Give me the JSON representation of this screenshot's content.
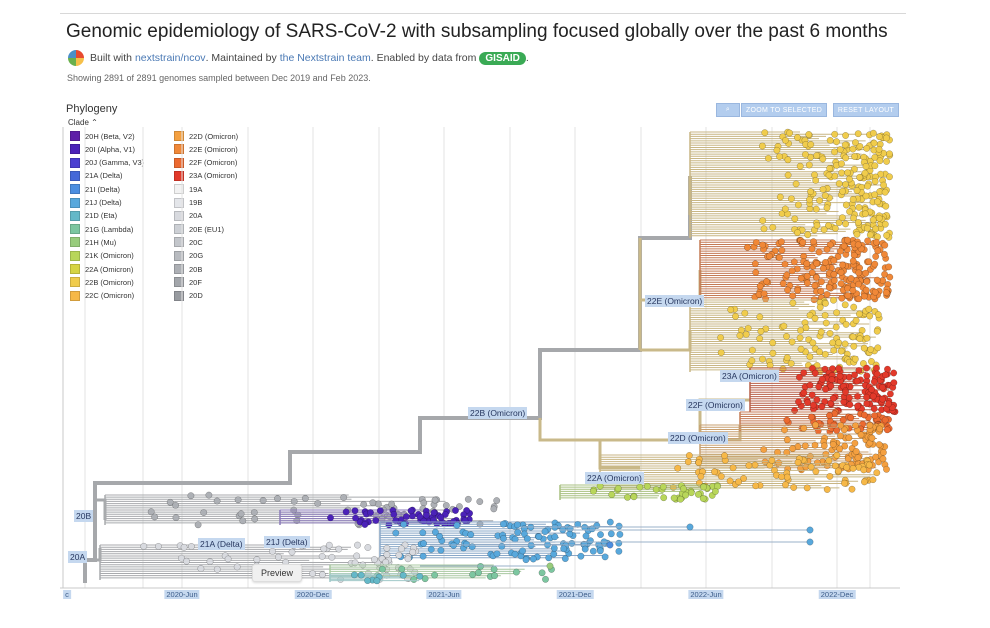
{
  "header": {
    "title": "Genomic epidemiology of SARS-CoV-2 with subsampling focused globally over the past 6 months",
    "built_with_prefix": "Built with",
    "built_with_link": "nextstrain/ncov",
    "maintained_prefix": ". Maintained by",
    "maintained_link": "the Nextstrain team",
    "enabled_prefix": ". Enabled by data from",
    "gisaid_badge": "GISAID",
    "period": ".",
    "summary": "Showing 2891 of 2891 genomes sampled between Dec 2019 and Feb 2023."
  },
  "panel": {
    "title": "Phylogeny",
    "clade_toggle": "Clade ⌃",
    "zoom_icon": "⌕",
    "zoom_label": "ZOOM TO SELECTED",
    "reset_label": "RESET LAYOUT",
    "preview_label": "Preview"
  },
  "legend": {
    "col1": [
      {
        "label": "20H (Beta, V2)",
        "color": "#5e1fa8"
      },
      {
        "label": "20I (Alpha, V1)",
        "color": "#4b22b8"
      },
      {
        "label": "20J (Gamma, V3)",
        "color": "#4a3fd0"
      },
      {
        "label": "21A (Delta)",
        "color": "#4468d8"
      },
      {
        "label": "21I (Delta)",
        "color": "#4c8ee0"
      },
      {
        "label": "21J (Delta)",
        "color": "#58a8dc"
      },
      {
        "label": "21D (Eta)",
        "color": "#64b8c8"
      },
      {
        "label": "21G (Lambda)",
        "color": "#7cc6a0"
      },
      {
        "label": "21H (Mu)",
        "color": "#98cc7c"
      },
      {
        "label": "21K (Omicron)",
        "color": "#b8d65a"
      },
      {
        "label": "22A (Omicron)",
        "color": "#d6d444"
      },
      {
        "label": "22B (Omicron)",
        "color": "#f0cc4c"
      },
      {
        "label": "22C (Omicron)",
        "color": "#f6b848"
      }
    ],
    "col2": [
      {
        "label": "22D (Omicron)",
        "color": "#f4a040"
      },
      {
        "label": "22E (Omicron)",
        "color": "#f08838"
      },
      {
        "label": "22F (Omicron)",
        "color": "#ec6a30"
      },
      {
        "label": "23A (Omicron)",
        "color": "#e2392a"
      },
      {
        "label": "19A",
        "color": "#f2f2f2"
      },
      {
        "label": "19B",
        "color": "#e4e6ea"
      },
      {
        "label": "20A",
        "color": "#d8dadf"
      },
      {
        "label": "20E (EU1)",
        "color": "#cdd0d5"
      },
      {
        "label": "20C",
        "color": "#c3c6cb"
      },
      {
        "label": "20G",
        "color": "#b8bbc0"
      },
      {
        "label": "20B",
        "color": "#adb0b5"
      },
      {
        "label": "20F",
        "color": "#a3a6ab"
      },
      {
        "label": "20D",
        "color": "#989ba0"
      }
    ]
  },
  "clade_labels": {
    "c22E": "22E (Omicron)",
    "c23A": "23A (Omicron)",
    "c22F": "22F (Omicron)",
    "c22B": "22B (Omicron)",
    "c22D": "22D (Omicron)",
    "c22A": "22A (Omicron)",
    "c20B": "20B",
    "c21A": "21A (Delta)",
    "c21J": "21J (Delta)",
    "c20A": "20A"
  },
  "axis": {
    "ticks": [
      "2020-Jun",
      "2020-Dec",
      "2021-Jun",
      "2021-Dec",
      "2022-Jun",
      "2022-Dec"
    ],
    "left_stub": "c"
  },
  "colors": {
    "grid": "#e3e3e3",
    "branch_omicron": "#c9b98a",
    "branch_root": "#a6a8ab",
    "label_bg": "#c5d8ef"
  }
}
